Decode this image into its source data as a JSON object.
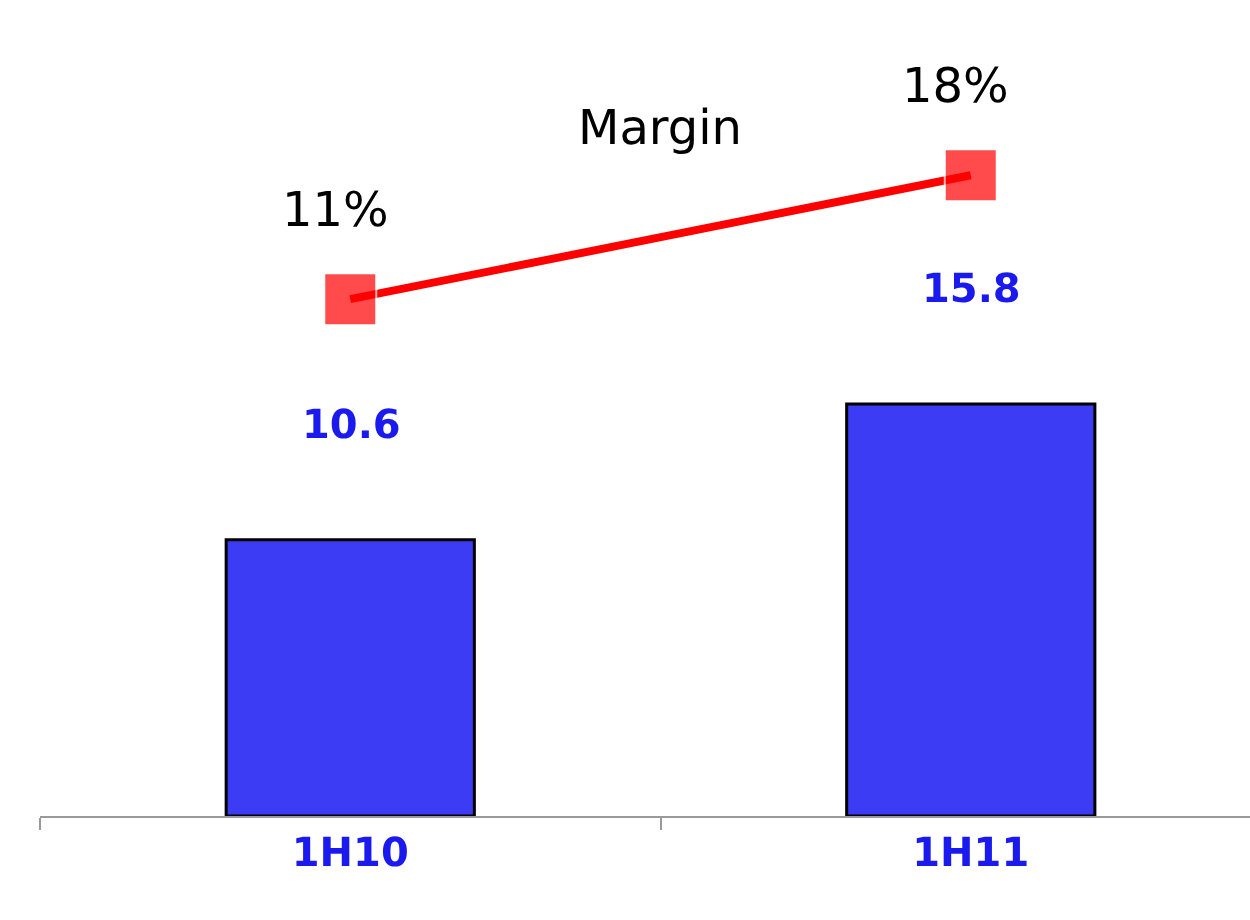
{
  "chart_data": {
    "type": "bar",
    "categories": [
      "1H10",
      "1H11"
    ],
    "ylim": [
      0,
      31.3
    ],
    "y2lim": [
      -18.2,
      27.9
    ],
    "data_labels": true,
    "legend": false,
    "series": [
      {
        "color": "#3c3cf5",
        "values": [
          10.6,
          15.8
        ]
      },
      {
        "name": "Margin",
        "type": "line",
        "axis": "y2",
        "color": "#ff0000",
        "marker": "square",
        "line_style": "solid",
        "values": [
          11,
          18
        ],
        "value_labels": [
          "11%",
          "18%"
        ]
      }
    ]
  }
}
